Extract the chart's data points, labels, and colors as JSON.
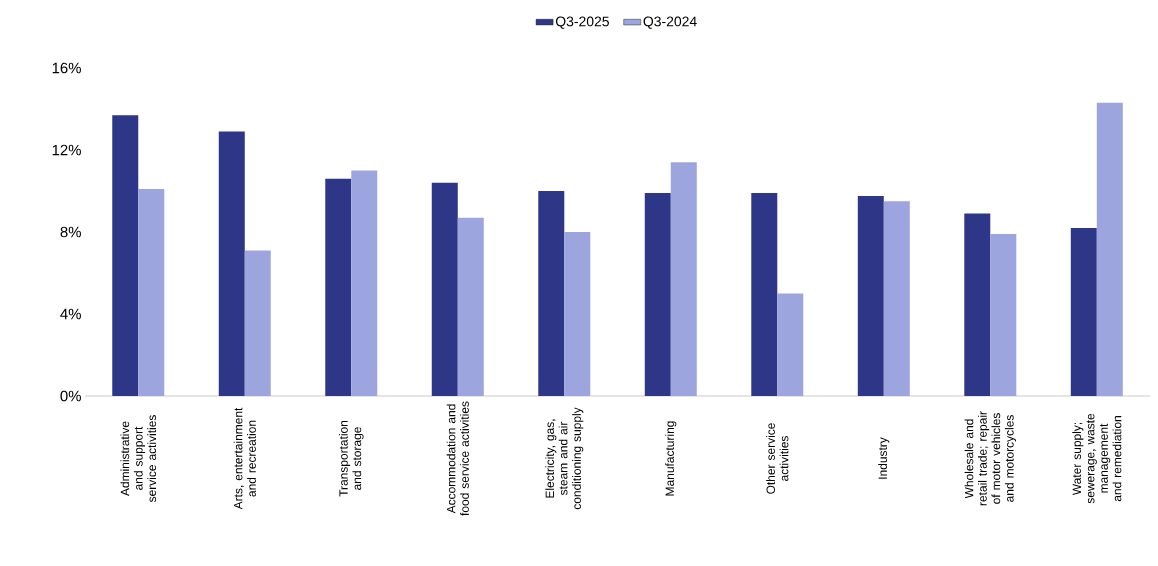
{
  "chart_data": {
    "type": "bar",
    "categories": [
      "Administrative and support service activities",
      "Arts, entertainment and recreation",
      "Transportation and storage",
      "Accommodation and food service activities",
      "Electricity, gas, steam and air conditioning supply",
      "Manufacturing",
      "Other service activities",
      "Industry",
      "Wholesale and retail trade; repair of motor vehicles and motorcycles",
      "Water supply; sewerage, waste management and remediation"
    ],
    "series": [
      {
        "name": "Q3-2025",
        "color": "#2e3687",
        "values": [
          13.7,
          12.9,
          10.6,
          10.4,
          10.0,
          9.9,
          9.9,
          9.75,
          8.9,
          8.2
        ]
      },
      {
        "name": "Q3-2024",
        "color": "#9ca5de",
        "values": [
          10.1,
          7.1,
          11.0,
          8.7,
          8.0,
          11.4,
          5.0,
          9.5,
          7.9,
          14.3
        ]
      }
    ],
    "ylim": [
      0,
      16
    ],
    "yticks": [
      {
        "value": 0,
        "label": "0%"
      },
      {
        "value": 4,
        "label": "4%"
      },
      {
        "value": 8,
        "label": "8%"
      },
      {
        "value": 12,
        "label": "12%"
      },
      {
        "value": 16,
        "label": "16%"
      }
    ],
    "legend": "top"
  }
}
